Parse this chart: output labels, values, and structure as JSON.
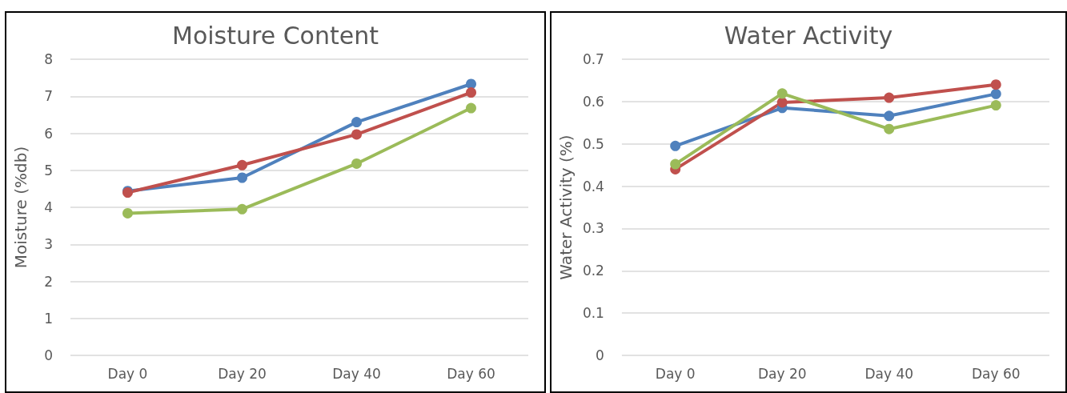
{
  "chart_data": [
    {
      "type": "line",
      "title": "Moisture Content",
      "ylabel": "Moisture (%db)",
      "categories": [
        "Day 0",
        "Day 20",
        "Day 40",
        "Day 60"
      ],
      "series": [
        {
          "color": "#4f81bd",
          "values": [
            4.44,
            4.8,
            6.3,
            7.33
          ]
        },
        {
          "color": "#c0504d",
          "values": [
            4.4,
            5.14,
            5.97,
            7.1
          ]
        },
        {
          "color": "#9bbb59",
          "values": [
            3.84,
            3.95,
            5.18,
            6.68
          ]
        }
      ],
      "ylim": [
        0,
        8
      ],
      "yticks": [
        0,
        1,
        2,
        3,
        4,
        5,
        6,
        7,
        8
      ],
      "grid": "y",
      "marker": "circle",
      "line_style": "solid"
    },
    {
      "type": "line",
      "title": "Water Activity",
      "ylabel": "Water Activity (%)",
      "categories": [
        "Day 0",
        "Day 20",
        "Day 40",
        "Day 60"
      ],
      "series": [
        {
          "color": "#4f81bd",
          "values": [
            0.495,
            0.585,
            0.566,
            0.618
          ]
        },
        {
          "color": "#c0504d",
          "values": [
            0.44,
            0.598,
            0.609,
            0.64
          ]
        },
        {
          "color": "#9bbb59",
          "values": [
            0.452,
            0.619,
            0.535,
            0.591
          ]
        }
      ],
      "ylim": [
        0,
        0.7
      ],
      "yticks": [
        0,
        0.1,
        0.2,
        0.3,
        0.4,
        0.5,
        0.6,
        0.7
      ],
      "grid": "y",
      "marker": "circle",
      "line_style": "solid"
    }
  ]
}
